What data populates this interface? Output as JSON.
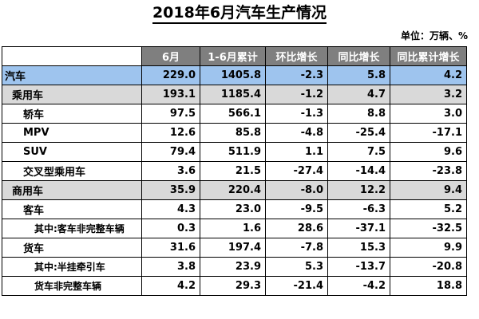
{
  "title": "2018年6月汽车生产情况",
  "unit": "单位：万辆、%",
  "table": {
    "headers": [
      "",
      "6月",
      "1-6月累计",
      "环比增长",
      "同比增长",
      "同比累计增长"
    ],
    "rows": [
      {
        "name": "汽车",
        "level": 0,
        "values": [
          "229.0",
          "1405.8",
          "-2.3",
          "5.8",
          "4.2"
        ]
      },
      {
        "name": "乘用车",
        "level": 1,
        "values": [
          "193.1",
          "1185.4",
          "-1.2",
          "4.7",
          "3.2"
        ]
      },
      {
        "name": "轿车",
        "level": 2,
        "values": [
          "97.5",
          "566.1",
          "-1.3",
          "8.8",
          "3.0"
        ]
      },
      {
        "name": "MPV",
        "level": 2,
        "values": [
          "12.6",
          "85.8",
          "-4.8",
          "-25.4",
          "-17.1"
        ]
      },
      {
        "name": "SUV",
        "level": 2,
        "values": [
          "79.4",
          "511.9",
          "1.1",
          "7.5",
          "9.6"
        ]
      },
      {
        "name": "交叉型乘用车",
        "level": 2,
        "values": [
          "3.6",
          "21.5",
          "-27.4",
          "-14.4",
          "-23.8"
        ]
      },
      {
        "name": "商用车",
        "level": 1,
        "values": [
          "35.9",
          "220.4",
          "-8.0",
          "12.2",
          "9.4"
        ]
      },
      {
        "name": "客车",
        "level": 2,
        "values": [
          "4.3",
          "23.0",
          "-9.5",
          "-6.3",
          "5.2"
        ]
      },
      {
        "name": "其中:客车非完整车辆",
        "level": 3,
        "values": [
          "0.3",
          "1.6",
          "28.6",
          "-37.1",
          "-32.5"
        ]
      },
      {
        "name": "货车",
        "level": 2,
        "values": [
          "31.6",
          "197.4",
          "-7.8",
          "15.3",
          "9.9"
        ]
      },
      {
        "name": "其中:半挂牵引车",
        "level": 3,
        "values": [
          "3.8",
          "23.9",
          "5.3",
          "-13.7",
          "-20.8"
        ]
      },
      {
        "name": "货车非完整车辆",
        "level": 3,
        "values": [
          "4.2",
          "29.3",
          "-21.4",
          "-4.2",
          "18.8"
        ]
      }
    ]
  },
  "colors": {
    "header_bg": "#7f7f7f",
    "total_row_bg": "#9ec4ee",
    "category_row_bg": "#d9d9d9"
  }
}
